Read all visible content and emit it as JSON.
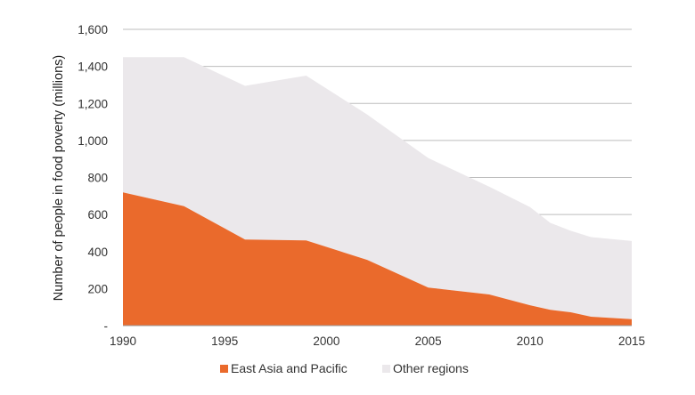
{
  "chart_data": {
    "type": "area",
    "stacked": true,
    "title": "",
    "xlabel": "",
    "ylabel": "Number of people in food poverty (millions)",
    "xlim": [
      1990,
      2015
    ],
    "ylim": [
      0,
      1600
    ],
    "x_ticks": [
      1990,
      1995,
      2000,
      2005,
      2010,
      2015
    ],
    "x_tick_labels": [
      "1990",
      "1995",
      "2000",
      "2005",
      "2010",
      "2015"
    ],
    "y_ticks": [
      0,
      200,
      400,
      600,
      800,
      1000,
      1200,
      1400,
      1600
    ],
    "y_tick_labels": [
      "-",
      "200",
      "400",
      "600",
      "800",
      "1,000",
      "1,200",
      "1,400",
      "1,600"
    ],
    "grid": true,
    "legend_position": "bottom-center",
    "x": [
      1990,
      1993,
      1996,
      1999,
      2002,
      2005,
      2008,
      2010,
      2011,
      2012,
      2013,
      2015
    ],
    "series": [
      {
        "name": "East Asia and Pacific",
        "color": "#ea6a2c",
        "values": [
          720,
          645,
          465,
          460,
          355,
          205,
          168,
          110,
          85,
          72,
          48,
          35
        ]
      },
      {
        "name": "Other regions",
        "color": "#ebe8eb",
        "values": [
          730,
          805,
          830,
          890,
          785,
          700,
          582,
          530,
          470,
          440,
          430,
          422
        ]
      }
    ],
    "totals": [
      1450,
      1450,
      1295,
      1350,
      1140,
      905,
      750,
      640,
      555,
      512,
      478,
      457
    ]
  }
}
